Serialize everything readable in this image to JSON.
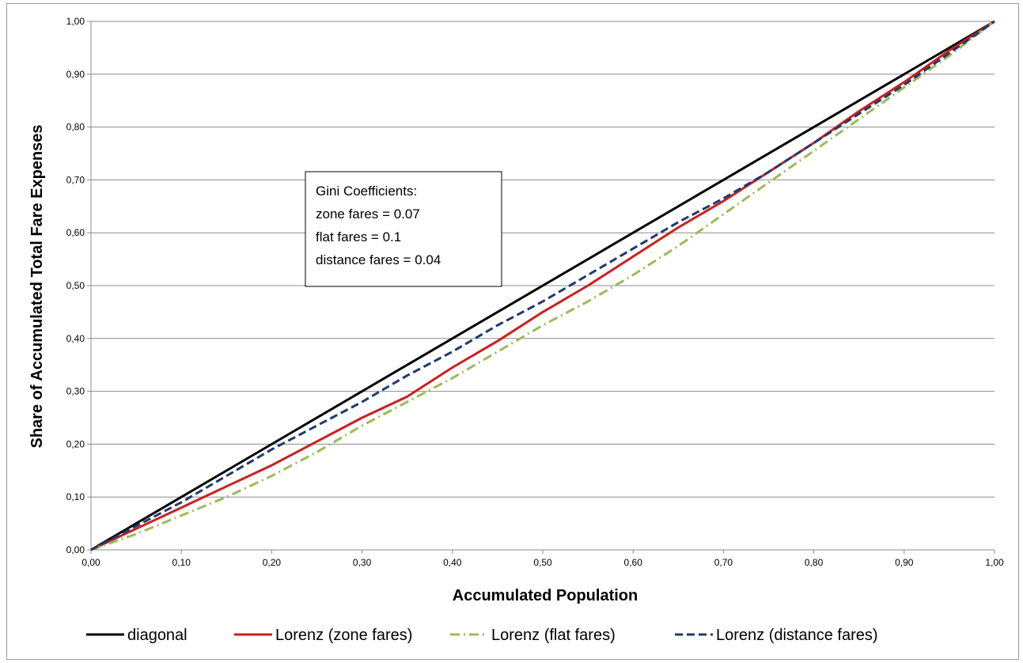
{
  "chart_data": {
    "type": "line",
    "xlabel": "Accumulated Population",
    "ylabel": "Share of Accumulated Total Fare Expenses",
    "xlim": [
      0,
      1
    ],
    "ylim": [
      0,
      1
    ],
    "x_ticks": [
      "0,00",
      "0,10",
      "0,20",
      "0,30",
      "0,40",
      "0,50",
      "0,60",
      "0,70",
      "0,80",
      "0,90",
      "1,00"
    ],
    "y_ticks": [
      "0,00",
      "0,10",
      "0,20",
      "0,30",
      "0,40",
      "0,50",
      "0,60",
      "0,70",
      "0,80",
      "0,90",
      "1,00"
    ],
    "grid": "horizontal",
    "legend_position": "bottom",
    "annotation": {
      "lines": [
        "Gini Coefficients:",
        "zone fares = 0.07",
        "flat fares = 0.1",
        "distance fares = 0.04"
      ]
    },
    "series": [
      {
        "name": "diagonal",
        "color": "#000000",
        "dash": "solid",
        "x": [
          0,
          1
        ],
        "y": [
          0,
          1
        ]
      },
      {
        "name": "Lorenz (zone fares)",
        "color": "#cc1f1f",
        "dash": "solid",
        "x": [
          0,
          0.05,
          0.1,
          0.15,
          0.2,
          0.25,
          0.3,
          0.35,
          0.4,
          0.45,
          0.5,
          0.55,
          0.6,
          0.65,
          0.7,
          0.75,
          0.8,
          0.85,
          0.9,
          0.95,
          1.0
        ],
        "y": [
          0,
          0.04,
          0.08,
          0.12,
          0.16,
          0.205,
          0.25,
          0.29,
          0.345,
          0.395,
          0.45,
          0.5,
          0.555,
          0.61,
          0.66,
          0.715,
          0.77,
          0.83,
          0.885,
          0.945,
          1.0
        ]
      },
      {
        "name": "Lorenz (flat fares)",
        "color": "#9bbb59",
        "dash": "dashdot",
        "x": [
          0,
          0.05,
          0.1,
          0.15,
          0.2,
          0.25,
          0.3,
          0.35,
          0.4,
          0.45,
          0.5,
          0.55,
          0.6,
          0.65,
          0.7,
          0.75,
          0.8,
          0.85,
          0.9,
          0.95,
          1.0
        ],
        "y": [
          0,
          0.03,
          0.065,
          0.1,
          0.14,
          0.185,
          0.235,
          0.28,
          0.325,
          0.375,
          0.425,
          0.47,
          0.52,
          0.575,
          0.635,
          0.695,
          0.755,
          0.815,
          0.875,
          0.935,
          1.0
        ]
      },
      {
        "name": "Lorenz (distance fares)",
        "color": "#1f3a6e",
        "dash": "dashed",
        "x": [
          0,
          0.05,
          0.1,
          0.15,
          0.2,
          0.25,
          0.3,
          0.35,
          0.4,
          0.45,
          0.5,
          0.55,
          0.6,
          0.65,
          0.7,
          0.75,
          0.8,
          0.85,
          0.9,
          0.95,
          1.0
        ],
        "y": [
          0,
          0.045,
          0.09,
          0.14,
          0.19,
          0.235,
          0.28,
          0.33,
          0.375,
          0.425,
          0.47,
          0.52,
          0.57,
          0.62,
          0.665,
          0.715,
          0.77,
          0.825,
          0.88,
          0.94,
          1.0
        ]
      }
    ]
  }
}
